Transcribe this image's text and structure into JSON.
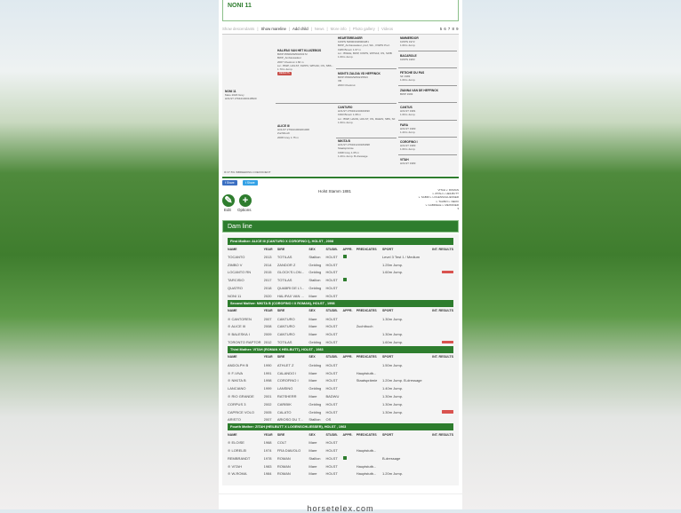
{
  "title": "NONI 11",
  "toolbar": {
    "items": [
      "Show descendants",
      "Show mareline",
      "Add child",
      "News",
      "More info",
      "Photo gallery",
      "Videos"
    ],
    "active": [
      1,
      2
    ],
    "pages": "5 6 7 8 9"
  },
  "pedigree": {
    "subject": {
      "name": "NONI 11",
      "lines": [
        "Mare 2020 Grey",
        "HOLST 276421000118520"
      ]
    },
    "sire": {
      "name": "HALIFAX VAN HET KLUIZEBOS",
      "lines": [
        "BWP 056002W00233172",
        "BWP_Ambassadeur",
        "2007 Chestnut 1.66 m",
        "Lic.: BWP, HOLST, KWPN, WPNAF, OS, SBS...",
        "1.70m Jump."
      ],
      "badge": "RESULTS"
    },
    "dam": {
      "name": "ALICE III",
      "lines": [
        "HOLST 276421000201008",
        "Zuchtbuch",
        "2008 Grey 1.75 m"
      ]
    },
    "gp": [
      {
        "name": "HEARTBREAKER",
        "lines": [
          "KWPN 528003198000281",
          "BWP_Ambassadeur, pref, Stb., KWPN Pref.",
          "1980 Brown 1.67 m",
          "Lic.: BWHE, BWP, KWPN, WPNAF, OS, SWB",
          "1.60m Jump."
        ]
      },
      {
        "name": "MONTS ZALDIA VD HEFFINCK",
        "lines": [
          "BWP 056002W00215523",
          "VB",
          "2003 Chestnut"
        ]
      },
      {
        "name": "CANTURO",
        "lines": [
          "HOLST 276321210400490",
          "1993 Brown 1.68 m",
          "Lic.: BWP, HANN, HOLST, OS, RHEIN, SBS, SF",
          "1.60m Jump."
        ]
      },
      {
        "name": "NIKITA B",
        "lines": [
          "HOLST 276321210184098",
          "Staatsprämie",
          "1998 Grey 1.65 m",
          "1.20m Jump. B-dressage"
        ]
      }
    ],
    "ggp": [
      {
        "name": "NIMMERDOR",
        "lines": [
          "KWPN 1972",
          "1.60m Jump."
        ]
      },
      {
        "name": "BACAROLE",
        "lines": [
          "KWPN 1983"
        ]
      },
      {
        "name": "FETICHE DU PAS",
        "lines": [
          "SF 1983",
          "1.60m Jump."
        ]
      },
      {
        "name": "ZIANNA VAN DE HEFFINCK",
        "lines": [
          "BWP 1993"
        ]
      },
      {
        "name": "CANTUS",
        "lines": [
          "HOLST 1981",
          "1.60m Jump."
        ]
      },
      {
        "name": "FARA",
        "lines": [
          "HOLST 1983",
          "1.20m Jump."
        ]
      },
      {
        "name": "COROFINO I",
        "lines": [
          "HOLST 1983",
          "1.60m Jump."
        ]
      },
      {
        "name": "VITAH",
        "lines": [
          "HOLST 1983"
        ]
      }
    ],
    "inbreeding_value": "37.5%",
    "inbreeding_label": "INBREEDING COEFFICIENT"
  },
  "share": {
    "facebook": "Share",
    "twitter": "Share"
  },
  "actions": {
    "edit": "Edit",
    "options": "Options"
  },
  "stamm": "Holst Stamm 1881",
  "lineage": [
    "VITAH v. ROMAN",
    "v. ZITAH v. HEILBUTT",
    "v. SABRI v. LOGENSCHLIESSER",
    "v. TALBRI v. NERO",
    "v. GABRIELE v. MEISSNER"
  ],
  "damline": {
    "title": "Dam line",
    "columns": [
      "NAME",
      "YEAR",
      "SIRE",
      "SEX",
      "STUDB.",
      "APPR.",
      "PREDICATES",
      "SPORT",
      "INT. RESULTS"
    ],
    "mothers": [
      {
        "title": "First Mother: ALICE III (CANTURO X COROFINO I), HOLST , 2008",
        "rows": [
          {
            "name": "TOCANTO",
            "year": "2013",
            "sire": "TOTILAS",
            "sex": "Stallion",
            "studb": "HOLST",
            "appr": true,
            "pred": "",
            "sport": "Level 3 Test 1 / Medium",
            "res": false,
            "female": false
          },
          {
            "name": "ZIMBO V",
            "year": "2014",
            "sire": "ZANDOR Z",
            "sex": "Gelding",
            "studb": "HOLST",
            "appr": false,
            "pred": "",
            "sport": "1.25m Jump.",
            "res": false,
            "female": false
          },
          {
            "name": "LOCANTO RN",
            "year": "2015",
            "sire": "GLOCK'S LON...",
            "sex": "Gelding",
            "studb": "HOLST",
            "appr": false,
            "pred": "",
            "sport": "1.60m Jump.",
            "res": true,
            "female": false
          },
          {
            "name": "TARCISIO",
            "year": "2017",
            "sire": "TOTILAS",
            "sex": "Stallion",
            "studb": "HOLST",
            "appr": true,
            "pred": "",
            "sport": "",
            "res": false,
            "female": false
          },
          {
            "name": "QUATRO",
            "year": "2018",
            "sire": "QUABRI DE L'I...",
            "sex": "Gelding",
            "studb": "HOLST",
            "appr": false,
            "pred": "",
            "sport": "",
            "res": false,
            "female": false
          },
          {
            "name": "NONI 11",
            "year": "2020",
            "sire": "HALIFAX VAN ...",
            "sex": "Mare",
            "studb": "HOLST",
            "appr": false,
            "pred": "",
            "sport": "",
            "res": false,
            "female": false
          }
        ]
      },
      {
        "title": "Second Mother: NIKITA B (COROFINO I X ROMAN), HOLST , 1998",
        "rows": [
          {
            "name": "CANTOREN",
            "year": "2007",
            "sire": "CANTURO",
            "sex": "Mare",
            "studb": "HOLST",
            "appr": false,
            "pred": "",
            "sport": "1.30m Jump.",
            "res": false,
            "female": true
          },
          {
            "name": "ALICE III",
            "year": "2008",
            "sire": "CANTURO",
            "sex": "Mare",
            "studb": "HOLST",
            "appr": false,
            "pred": "Zuchtbuch",
            "sport": "",
            "res": false,
            "female": true
          },
          {
            "name": "BALESKA I",
            "year": "2009",
            "sire": "CANTURO",
            "sex": "Mare",
            "studb": "HOLST",
            "appr": false,
            "pred": "",
            "sport": "1.30m Jump.",
            "res": false,
            "female": true
          },
          {
            "name": "TORONTO RAPTOR",
            "year": "2012",
            "sire": "TOTILAS",
            "sex": "Gelding",
            "studb": "HOLST",
            "appr": false,
            "pred": "",
            "sport": "1.60m Jump.",
            "res": true,
            "female": false
          }
        ]
      },
      {
        "title": "Third Mother: VITAH (ROMAN X HEILBUTT), HOLST , 1983",
        "rows": [
          {
            "name": "ANDOLPH B",
            "year": "1990",
            "sire": "ATHLET Z",
            "sex": "Gelding",
            "studb": "HOLST",
            "appr": false,
            "pred": "",
            "sport": "1.50m Jump.",
            "res": false,
            "female": false
          },
          {
            "name": "F-VIVA",
            "year": "1991",
            "sire": "CALANDO I",
            "sex": "Mare",
            "studb": "HOLST",
            "appr": false,
            "pred": "Hauptstutb...",
            "sport": "",
            "res": false,
            "female": true
          },
          {
            "name": "NIKITA B",
            "year": "1998",
            "sire": "COROFINO I",
            "sex": "Mare",
            "studb": "HOLST",
            "appr": false,
            "pred": "Staatsprämie",
            "sport": "1.20m Jump. B-dressage",
            "res": false,
            "female": true
          },
          {
            "name": "LANCIANO",
            "year": "1999",
            "sire": "LANSING",
            "sex": "Gelding",
            "studb": "HOLST",
            "appr": false,
            "pred": "",
            "sport": "1.40m Jump.",
            "res": false,
            "female": false
          },
          {
            "name": "RIO GRANDE",
            "year": "2001",
            "sire": "RATSHERR",
            "sex": "Mare",
            "studb": "BADWU",
            "appr": false,
            "pred": "",
            "sport": "1.30m Jump.",
            "res": false,
            "female": true
          },
          {
            "name": "CORPUS 3",
            "year": "2002",
            "sire": "CARIBIK",
            "sex": "Gelding",
            "studb": "HOLST",
            "appr": false,
            "pred": "",
            "sport": "1.30m Jump.",
            "res": false,
            "female": false
          },
          {
            "name": "CAPRICE VOLO",
            "year": "2005",
            "sire": "CALATO",
            "sex": "Gelding",
            "studb": "HOLST",
            "appr": false,
            "pred": "",
            "sport": "1.30m Jump.",
            "res": true,
            "female": false
          },
          {
            "name": "ARISTO",
            "year": "2007",
            "sire": "ARIOSO DU T...",
            "sex": "Stallion",
            "studb": "OS",
            "appr": false,
            "pred": "",
            "sport": "",
            "res": false,
            "female": false
          }
        ]
      },
      {
        "title": "Fourth Mother: ZITAH (HEILBUTT X LOGENSCHLIESSER), HOLST , 1963",
        "rows": [
          {
            "name": "ELOISE",
            "year": "1968",
            "sire": "COLT",
            "sex": "Mare",
            "studb": "HOLST",
            "appr": false,
            "pred": "",
            "sport": "",
            "res": false,
            "female": true
          },
          {
            "name": "LORELEI",
            "year": "1974",
            "sire": "FRA DIAVOLO",
            "sex": "Mare",
            "studb": "HOLST",
            "appr": false,
            "pred": "Hauptstutb...",
            "sport": "",
            "res": false,
            "female": true
          },
          {
            "name": "REMBRANDT",
            "year": "1978",
            "sire": "ROMAN",
            "sex": "Stallion",
            "studb": "HOLST",
            "appr": true,
            "pred": "",
            "sport": "B-dressage",
            "res": false,
            "female": false
          },
          {
            "name": "VITAH",
            "year": "1983",
            "sire": "ROMAN",
            "sex": "Mare",
            "studb": "HOLST",
            "appr": false,
            "pred": "Hauptstutb...",
            "sport": "",
            "res": false,
            "female": true
          },
          {
            "name": "W-ROMA",
            "year": "1984",
            "sire": "ROMAN",
            "sex": "Mare",
            "studb": "HOLST",
            "appr": false,
            "pred": "Hauptstutb...",
            "sport": "1.20m Jump.",
            "res": false,
            "female": true
          }
        ]
      }
    ]
  },
  "footer": "horsetelex.com",
  "colors": {
    "brand_green": "#2e7d2e",
    "results_badge": "#d9534f"
  }
}
